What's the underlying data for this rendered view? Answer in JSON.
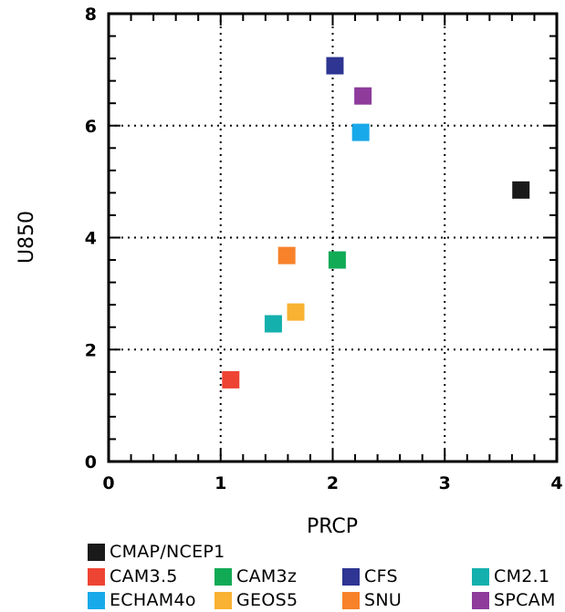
{
  "chart_data": {
    "type": "scatter",
    "xlabel": "PRCP",
    "ylabel": "U850",
    "xlim": [
      0,
      4
    ],
    "ylim": [
      0,
      8
    ],
    "x_ticks": [
      "0",
      "1",
      "2",
      "3",
      "4"
    ],
    "y_ticks": [
      "0",
      "2",
      "4",
      "6",
      "8"
    ],
    "grid": true,
    "series": [
      {
        "name": "CMAP/NCEP1",
        "color": "#1a1a1a",
        "x": 3.68,
        "y": 4.85
      },
      {
        "name": "CAM3.5",
        "color": "#ee4433",
        "x": 1.09,
        "y": 1.46
      },
      {
        "name": "CAM3z",
        "color": "#11aa55",
        "x": 2.04,
        "y": 3.6
      },
      {
        "name": "CFS",
        "color": "#2e3592",
        "x": 2.02,
        "y": 7.07
      },
      {
        "name": "CM2.1",
        "color": "#14b0ad",
        "x": 1.47,
        "y": 2.46
      },
      {
        "name": "ECHAM4o",
        "color": "#18a9ea",
        "x": 2.25,
        "y": 5.88
      },
      {
        "name": "GEOS5",
        "color": "#f9b232",
        "x": 1.67,
        "y": 2.67
      },
      {
        "name": "SNU",
        "color": "#f7822a",
        "x": 1.59,
        "y": 3.68
      },
      {
        "name": "SPCAM",
        "color": "#8e3b9c",
        "x": 2.27,
        "y": 6.53
      }
    ]
  }
}
